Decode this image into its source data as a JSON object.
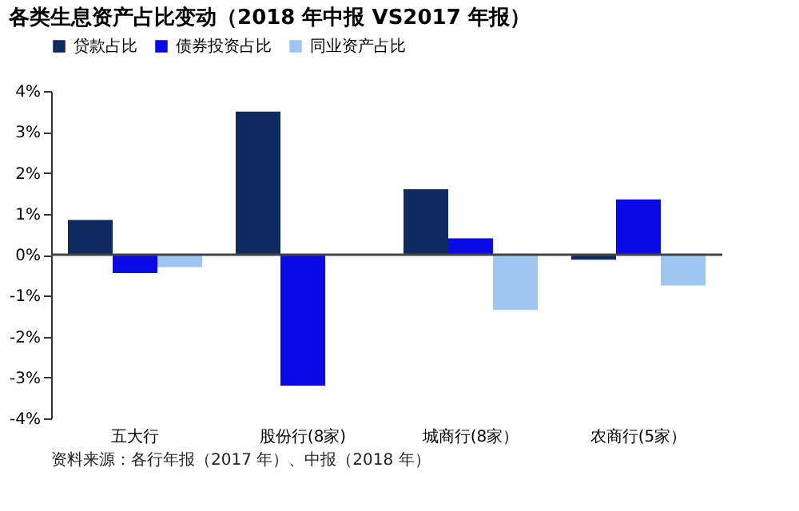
{
  "chart_data": {
    "type": "bar",
    "title": "各类生息资产占比变动（2018 年中报 VS2017 年报）",
    "categories": [
      "五大行",
      "股份行(8家)",
      "城商行(8家）",
      "农商行(5家）"
    ],
    "series": [
      {
        "name": "贷款占比",
        "color": "#0f2a5e",
        "values": [
          0.85,
          3.5,
          1.6,
          -0.12
        ]
      },
      {
        "name": "债券投资占比",
        "color": "#0a0ae6",
        "values": [
          -0.45,
          -3.2,
          0.4,
          1.35
        ]
      },
      {
        "name": "同业资产占比",
        "color": "#9ec6f0",
        "values": [
          -0.3,
          null,
          -1.35,
          -0.75
        ]
      }
    ],
    "ylim": [
      -4,
      4
    ],
    "yticks": [
      {
        "value": -4,
        "label": "-4%"
      },
      {
        "value": -3,
        "label": "-3%"
      },
      {
        "value": -2,
        "label": "-2%"
      },
      {
        "value": -1,
        "label": "-1%"
      },
      {
        "value": 0,
        "label": "0%"
      },
      {
        "value": 1,
        "label": "1%"
      },
      {
        "value": 2,
        "label": "2%"
      },
      {
        "value": 3,
        "label": "3%"
      },
      {
        "value": 4,
        "label": "4%"
      }
    ],
    "ref_lines": [
      {
        "axis": "y",
        "value": 0,
        "label": null,
        "color": "#444444"
      }
    ],
    "grid": false,
    "legend": "top",
    "annotations": [
      "资料来源：各行年报（2017 年）、中报（2018 年）"
    ]
  }
}
